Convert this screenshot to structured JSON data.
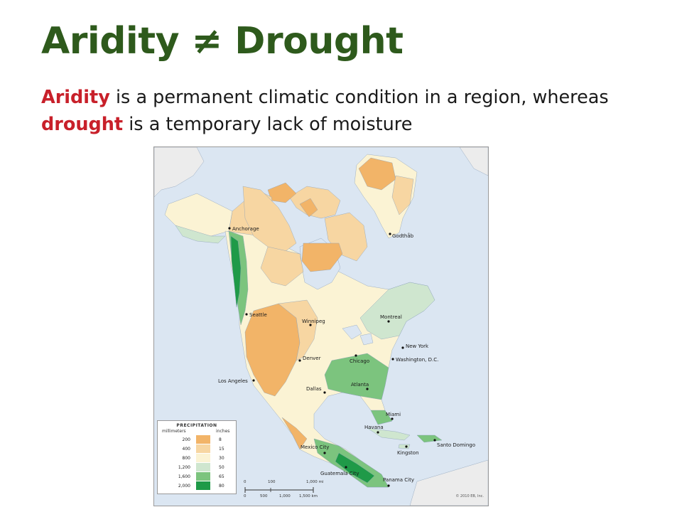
{
  "slide": {
    "title": "Aridity ≠ Drought",
    "subtitle": {
      "term1": "Aridity",
      "text1": " is a permanent climatic condition in a region, whereas ",
      "term2": "drought",
      "text2": " is a temporary lack of moisture"
    }
  },
  "map": {
    "colors": {
      "ocean": "#dbe6f2",
      "land_outside": "#ececec",
      "band_200": "#f2b468",
      "band_400": "#f7d6a2",
      "band_800": "#fbf3d4",
      "band_1200": "#cfe6cf",
      "band_1600": "#7cc47e",
      "band_2000": "#1f9a48"
    },
    "cities": [
      {
        "name": "Anchorage"
      },
      {
        "name": "Godthåb"
      },
      {
        "name": "Seattle"
      },
      {
        "name": "Winnipeg"
      },
      {
        "name": "Montreal"
      },
      {
        "name": "New York"
      },
      {
        "name": "Denver"
      },
      {
        "name": "Chicago"
      },
      {
        "name": "Washington, D.C."
      },
      {
        "name": "Los Angeles"
      },
      {
        "name": "Dallas"
      },
      {
        "name": "Atlanta"
      },
      {
        "name": "Miami"
      },
      {
        "name": "Havana"
      },
      {
        "name": "Mexico City"
      },
      {
        "name": "Kingston"
      },
      {
        "name": "Santo Domingo"
      },
      {
        "name": "Guatemala City"
      },
      {
        "name": "Panama City"
      }
    ],
    "legend": {
      "title": "PRECIPITATION",
      "unit_mm": "millimeters",
      "unit_in": "inches",
      "rows": [
        {
          "mm": "200",
          "in": "8",
          "color": "#f2b468"
        },
        {
          "mm": "400",
          "in": "15",
          "color": "#f7d6a2"
        },
        {
          "mm": "800",
          "in": "30",
          "color": "#fbf3d4"
        },
        {
          "mm": "1,200",
          "in": "50",
          "color": "#cfe6cf"
        },
        {
          "mm": "1,600",
          "in": "65",
          "color": "#7cc47e"
        },
        {
          "mm": "2,000",
          "in": "80",
          "color": "#1f9a48"
        }
      ]
    },
    "scale": {
      "mi_labels": [
        "0",
        "100",
        "1,000 mi"
      ],
      "km_labels": [
        "0",
        "500",
        "1,000",
        "1,500 km"
      ]
    },
    "copyright": "© 2010 EB, Inc."
  }
}
